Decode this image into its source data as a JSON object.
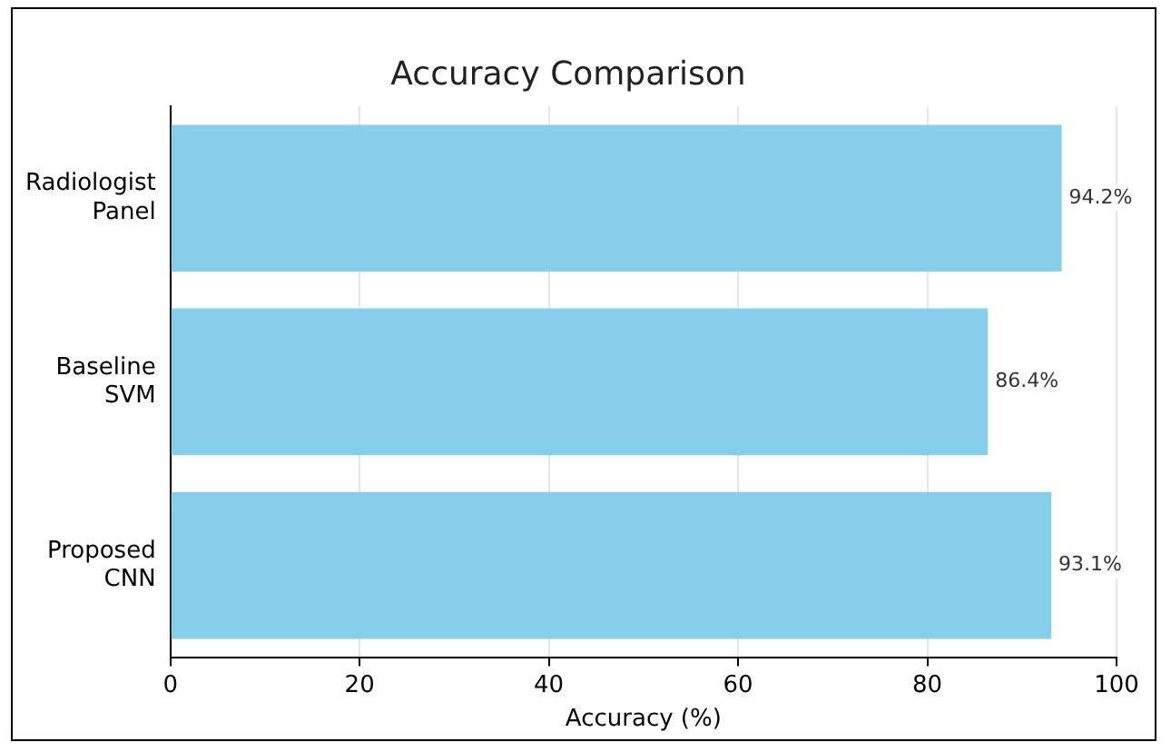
{
  "chart_data": {
    "type": "bar",
    "orientation": "horizontal",
    "title": "Accuracy Comparison",
    "xlabel": "Accuracy (%)",
    "categories": [
      "Radiologist Panel",
      "Baseline SVM",
      "Proposed CNN"
    ],
    "values": [
      94.2,
      86.4,
      93.1
    ],
    "value_labels": [
      "94.2%",
      "86.4%",
      "93.1%"
    ],
    "color": "#87ceeb",
    "xlim": [
      0,
      100
    ],
    "xticks": [
      0,
      20,
      40,
      60,
      80,
      100
    ],
    "grid": "x",
    "legend": false
  }
}
